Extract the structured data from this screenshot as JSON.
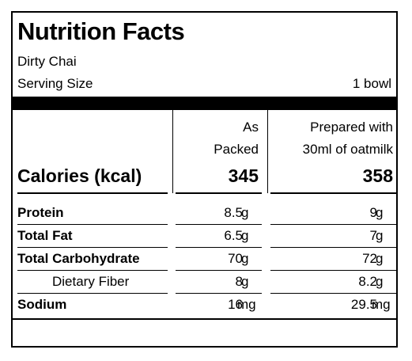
{
  "label": {
    "title": "Nutrition Facts",
    "product": "Dirty Chai",
    "serving_label": "Serving Size",
    "serving_value": "1 bowl"
  },
  "columns": {
    "col1_line1": "As",
    "col1_line2": "Packed",
    "col2_line1": "Prepared with",
    "col2_line2": "30ml of oatmilk"
  },
  "calories": {
    "label": "Calories (kcal)",
    "packed": "345",
    "prepared": "358"
  },
  "nutrients": [
    {
      "name": "Protein",
      "packed": "8.5",
      "packed_unit": "g",
      "prepared": "9",
      "prepared_unit": "g"
    },
    {
      "name": "Total Fat",
      "packed": "6.5",
      "packed_unit": "g",
      "prepared": "7",
      "prepared_unit": "g"
    },
    {
      "name": "Total Carbohydrate",
      "packed": "70",
      "packed_unit": "g",
      "prepared": "72",
      "prepared_unit": "g"
    },
    {
      "name": "Dietary Fiber",
      "packed": "8",
      "packed_unit": "g",
      "prepared": "8.2",
      "prepared_unit": "g"
    },
    {
      "name": "Sodium",
      "packed": "16",
      "packed_unit": "mg",
      "prepared": "29.5",
      "prepared_unit": "mg"
    }
  ]
}
